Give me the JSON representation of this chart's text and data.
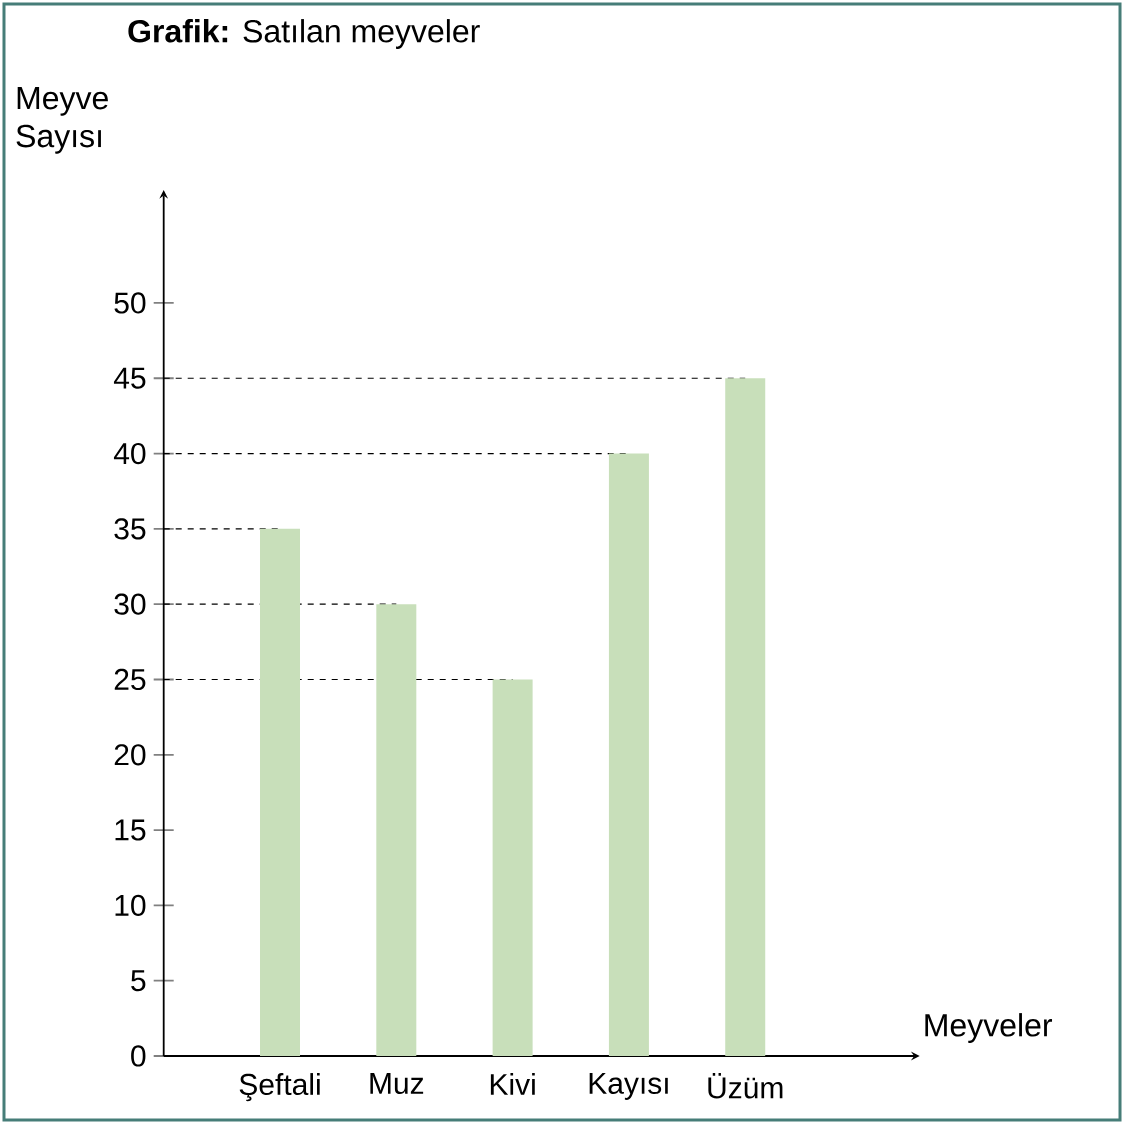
{
  "chart_data": {
    "type": "bar",
    "title": "**Grafik:** Satılan meyveler",
    "xlabel": "Meyveler",
    "ylabel": "Meyve Sayısı",
    "categories": [
      "Şeftali",
      "Muz",
      "Kivi",
      "Kayısı",
      "Üzüm"
    ],
    "values": [
      35,
      30,
      25,
      40,
      45
    ],
    "color": "#c8dfba",
    "ylim": [
      0,
      57.5
    ],
    "yticks": [
      0,
      5,
      10,
      15,
      20,
      25,
      30,
      35,
      40,
      45,
      50
    ],
    "ref_lines": [
      {
        "axis": "y",
        "value": 25,
        "line_style": "dashed"
      },
      {
        "axis": "y",
        "value": 30,
        "line_style": "dashed"
      },
      {
        "axis": "y",
        "value": 35,
        "line_style": "dashed"
      },
      {
        "axis": "y",
        "value": 40,
        "line_style": "dashed"
      },
      {
        "axis": "y",
        "value": 45,
        "line_style": "dashed"
      }
    ],
    "grid": false
  }
}
